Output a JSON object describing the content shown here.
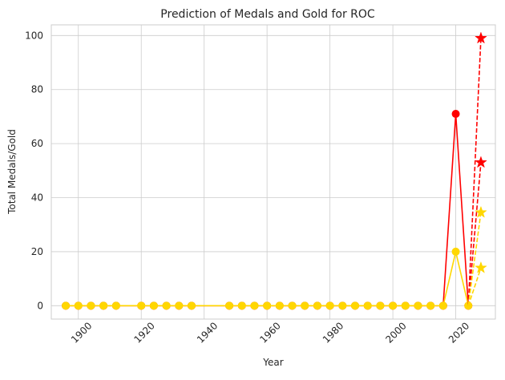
{
  "chart_data": {
    "type": "line",
    "title": "Prediction of Medals and Gold for ROC",
    "xlabel": "Year",
    "ylabel": "Total Medals/Gold",
    "xlim": [
      1891.4,
      2032.6
    ],
    "ylim": [
      -4.95,
      103.95
    ],
    "grid": true,
    "x_ticks": [
      1900,
      1920,
      1940,
      1960,
      1980,
      2000,
      2020
    ],
    "y_ticks": [
      0,
      20,
      40,
      60,
      80,
      100
    ],
    "x_tick_rotation": 45,
    "colors": {
      "total": "#ff0000",
      "gold": "#ffd700",
      "grid": "#cccccc",
      "spine": "#cccccc"
    },
    "series": [
      {
        "style": "solid-line-circle",
        "color": "#ff0000",
        "x": [
          1896,
          1900,
          1904,
          1908,
          1912,
          1920,
          1924,
          1928,
          1932,
          1936,
          1948,
          1952,
          1956,
          1960,
          1964,
          1968,
          1972,
          1976,
          1980,
          1984,
          1988,
          1992,
          1996,
          2000,
          2004,
          2008,
          2012,
          2016,
          2020,
          2024
        ],
        "y": [
          0,
          0,
          0,
          0,
          0,
          0,
          0,
          0,
          0,
          0,
          0,
          0,
          0,
          0,
          0,
          0,
          0,
          0,
          0,
          0,
          0,
          0,
          0,
          0,
          0,
          0,
          0,
          0,
          71,
          0
        ]
      },
      {
        "style": "solid-line-circle",
        "color": "#ffd700",
        "x": [
          1896,
          1900,
          1904,
          1908,
          1912,
          1920,
          1924,
          1928,
          1932,
          1936,
          1948,
          1952,
          1956,
          1960,
          1964,
          1968,
          1972,
          1976,
          1980,
          1984,
          1988,
          1992,
          1996,
          2000,
          2004,
          2008,
          2012,
          2016,
          2020,
          2024
        ],
        "y": [
          0,
          0,
          0,
          0,
          0,
          0,
          0,
          0,
          0,
          0,
          0,
          0,
          0,
          0,
          0,
          0,
          0,
          0,
          0,
          0,
          0,
          0,
          0,
          0,
          0,
          0,
          0,
          0,
          20,
          0
        ]
      },
      {
        "style": "dashed-line-star",
        "color": "#ff0000",
        "x": [
          2024,
          2028
        ],
        "y": [
          0,
          99
        ]
      },
      {
        "style": "dashed-line-star",
        "color": "#ff0000",
        "x": [
          2024,
          2028
        ],
        "y": [
          0,
          53
        ]
      },
      {
        "style": "dashed-line-star",
        "color": "#ffd700",
        "x": [
          2024,
          2028
        ],
        "y": [
          0,
          34.5
        ]
      },
      {
        "style": "dashed-line-star",
        "color": "#ffd700",
        "x": [
          2024,
          2028
        ],
        "y": [
          0,
          14
        ]
      }
    ]
  }
}
